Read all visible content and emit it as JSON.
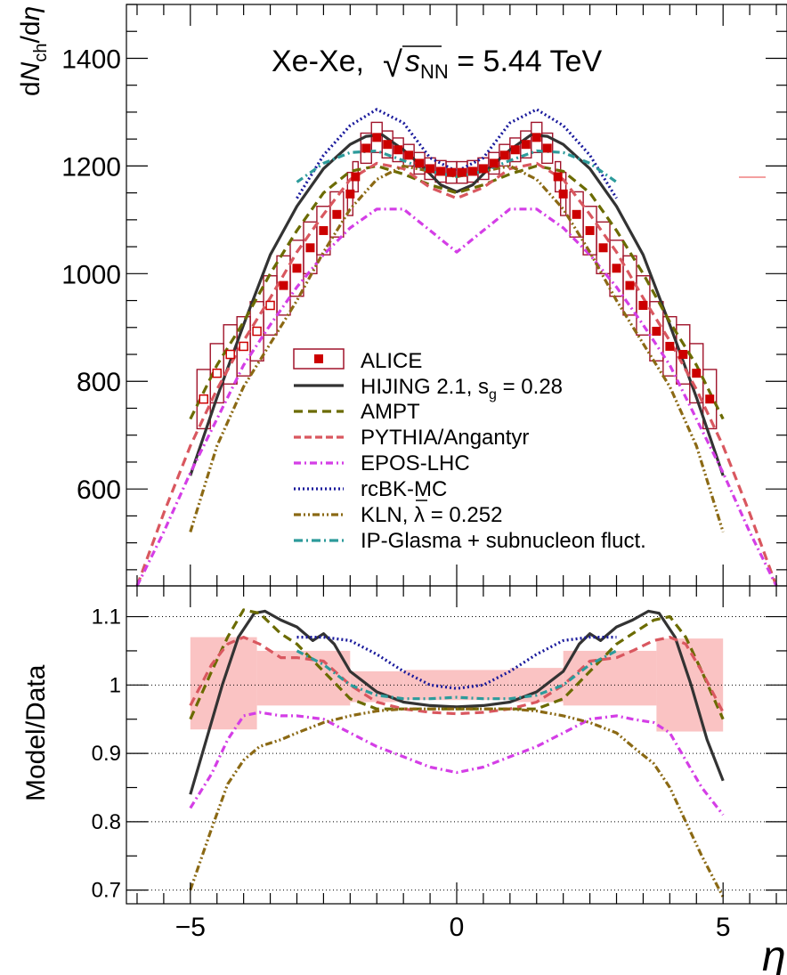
{
  "chart_data": [
    {
      "type": "line",
      "title_main": "Xe-Xe,",
      "title_sqrt": "√",
      "title_s": "s",
      "title_sub": "NN",
      "title_rest": " = 5.44 TeV",
      "ylabel_d": "d",
      "ylabel_N": "N",
      "ylabel_sub": "ch",
      "ylabel_rest": "/d",
      "ylabel_eta": "η",
      "ylim": [
        420,
        1500
      ],
      "yticks": [
        600,
        800,
        1000,
        1200,
        1400
      ],
      "ytick_labels": [
        "600",
        "800",
        "1000",
        "1200",
        "1400"
      ],
      "xlim": [
        -6.2,
        6.2
      ],
      "alice": {
        "name": "ALICE",
        "eta": [
          -4.75,
          -4.5,
          -4.25,
          -4.0,
          -3.75,
          -3.5,
          -3.25,
          -3.0,
          -2.75,
          -2.5,
          -2.25,
          -2.0,
          -1.9,
          -1.7,
          -1.5,
          -1.3,
          -1.1,
          -0.9,
          -0.7,
          -0.5,
          -0.3,
          -0.1,
          0.1,
          0.3,
          0.5,
          0.7,
          0.9,
          1.1,
          1.3,
          1.5,
          1.7,
          1.9,
          2.0,
          2.25,
          2.5,
          2.75,
          3.0,
          3.25,
          3.5,
          3.75,
          4.0,
          4.25,
          4.5,
          4.75
        ],
        "value": [
          767,
          815,
          850,
          865,
          893,
          941,
          978,
          1010,
          1048,
          1080,
          1110,
          1148,
          1180,
          1233,
          1253,
          1240,
          1230,
          1220,
          1205,
          1195,
          1190,
          1188,
          1188,
          1190,
          1195,
          1205,
          1220,
          1230,
          1240,
          1253,
          1233,
          1180,
          1148,
          1110,
          1080,
          1048,
          1010,
          978,
          941,
          893,
          865,
          850,
          815,
          767
        ],
        "open_markers": [
          true,
          true,
          true,
          true,
          true,
          true,
          false,
          false,
          false,
          false,
          false,
          false,
          false,
          false,
          false,
          false,
          false,
          false,
          false,
          false,
          false,
          false,
          false,
          false,
          false,
          false,
          false,
          false,
          false,
          false,
          false,
          false,
          false,
          false,
          false,
          false,
          false,
          false,
          false,
          false,
          false,
          false,
          false,
          false
        ],
        "sys": [
          55,
          55,
          55,
          55,
          55,
          55,
          55,
          52,
          48,
          45,
          42,
          40,
          28,
          28,
          28,
          25,
          22,
          20,
          20,
          20,
          20,
          20,
          20,
          20,
          20,
          20,
          20,
          22,
          25,
          28,
          28,
          28,
          40,
          42,
          45,
          48,
          52,
          55,
          55,
          55,
          55,
          55,
          55,
          55
        ]
      },
      "series": [
        {
          "name": "HIJING 2.1, s",
          "name_sub": "g",
          "name_rest": " = 0.28",
          "color": "#333333",
          "dash": "solid",
          "x": [
            -5.0,
            -4.5,
            -4.0,
            -3.5,
            -3.0,
            -2.5,
            -2.0,
            -1.7,
            -1.4,
            -1.0,
            -0.6,
            -0.3,
            0.0,
            0.3,
            0.6,
            1.0,
            1.4,
            1.7,
            2.0,
            2.5,
            3.0,
            3.5,
            4.0,
            4.5,
            5.0
          ],
          "y": [
            625,
            770,
            905,
            1035,
            1125,
            1195,
            1240,
            1255,
            1258,
            1230,
            1195,
            1165,
            1152,
            1165,
            1195,
            1230,
            1258,
            1255,
            1240,
            1195,
            1125,
            1035,
            905,
            770,
            625
          ]
        },
        {
          "name": "AMPT",
          "color": "#6b6b00",
          "dash": "dash",
          "x": [
            -5.0,
            -4.5,
            -4.0,
            -3.5,
            -3.0,
            -2.5,
            -2.0,
            -1.5,
            -1.0,
            -0.5,
            0.0,
            0.5,
            1.0,
            1.5,
            2.0,
            2.5,
            3.0,
            3.5,
            4.0,
            4.5,
            5.0
          ],
          "y": [
            730,
            830,
            910,
            1000,
            1080,
            1150,
            1190,
            1200,
            1185,
            1165,
            1150,
            1165,
            1185,
            1200,
            1190,
            1150,
            1080,
            1000,
            910,
            830,
            730
          ]
        },
        {
          "name": "PYTHIA/Angantyr",
          "color": "#d9575f",
          "dash": "dash",
          "x": [
            -6.0,
            -5.5,
            -5.0,
            -4.5,
            -4.0,
            -3.5,
            -3.0,
            -2.5,
            -2.0,
            -1.5,
            -1.0,
            -0.5,
            0.0,
            0.5,
            1.0,
            1.5,
            2.0,
            2.5,
            3.0,
            3.5,
            4.0,
            4.5,
            5.0,
            5.5,
            6.0
          ],
          "y": [
            420,
            555,
            680,
            785,
            875,
            955,
            1040,
            1110,
            1175,
            1205,
            1195,
            1160,
            1140,
            1160,
            1195,
            1205,
            1175,
            1110,
            1040,
            955,
            875,
            785,
            680,
            555,
            420
          ]
        },
        {
          "name": "EPOS-LHC",
          "color": "#d43ee6",
          "dash": "dashdot",
          "x": [
            -6.0,
            -5.5,
            -5.0,
            -4.5,
            -4.0,
            -3.5,
            -3.0,
            -2.5,
            -2.0,
            -1.5,
            -1.0,
            -0.5,
            0.0,
            0.5,
            1.0,
            1.5,
            2.0,
            2.5,
            3.0,
            3.5,
            4.0,
            4.5,
            5.0,
            5.5,
            6.0
          ],
          "y": [
            420,
            520,
            630,
            730,
            830,
            905,
            975,
            1035,
            1085,
            1120,
            1120,
            1080,
            1040,
            1080,
            1120,
            1120,
            1085,
            1035,
            975,
            905,
            830,
            730,
            630,
            520,
            420
          ]
        },
        {
          "name": "rcBK-MC",
          "color": "#1a1a9c",
          "dash": "dot",
          "x": [
            -3.0,
            -2.5,
            -2.0,
            -1.5,
            -1.0,
            -0.5,
            0.0,
            0.5,
            1.0,
            1.5,
            2.0,
            2.5,
            3.0
          ],
          "y": [
            1140,
            1220,
            1275,
            1305,
            1280,
            1215,
            1190,
            1215,
            1280,
            1305,
            1275,
            1220,
            1140
          ]
        },
        {
          "name": "KLN, ",
          "name_bar": "λ",
          "name_rest": " = 0.252",
          "color": "#8b6914",
          "dash": "dashdotdot",
          "x": [
            -5.0,
            -4.5,
            -4.0,
            -3.5,
            -3.0,
            -2.5,
            -2.0,
            -1.5,
            -1.0,
            -0.5,
            0.0,
            0.5,
            1.0,
            1.5,
            2.0,
            2.5,
            3.0,
            3.5,
            4.0,
            4.5,
            5.0
          ],
          "y": [
            520,
            680,
            790,
            870,
            950,
            1040,
            1120,
            1175,
            1200,
            1190,
            1180,
            1190,
            1200,
            1175,
            1120,
            1040,
            950,
            870,
            790,
            680,
            520
          ]
        },
        {
          "name": "IP-Glasma + subnucleon fluct.",
          "color": "#2c9b9b",
          "dash": "dashdot",
          "x": [
            -3.0,
            -2.5,
            -2.0,
            -1.5,
            -1.0,
            -0.5,
            0.0,
            0.5,
            1.0,
            1.5,
            2.0,
            2.5,
            3.0
          ],
          "y": [
            1170,
            1205,
            1225,
            1228,
            1210,
            1190,
            1180,
            1190,
            1210,
            1228,
            1225,
            1205,
            1170
          ]
        }
      ]
    },
    {
      "type": "line",
      "ylabel": "Model/Data",
      "xlabel": "η",
      "ylim": [
        0.68,
        1.145
      ],
      "yticks": [
        0.7,
        0.8,
        0.9,
        1.0,
        1.1
      ],
      "ytick_labels": [
        "0.7",
        "0.8",
        "0.9",
        "1",
        "1.1"
      ],
      "xlim": [
        -6.2,
        6.2
      ],
      "xticks": [
        -5,
        0,
        5
      ],
      "xtick_labels": [
        "−5",
        "0",
        "5"
      ],
      "band": [
        {
          "x0": -5.0,
          "x1": -3.75,
          "lo": 0.935,
          "hi": 1.07
        },
        {
          "x0": -3.75,
          "x1": -2.0,
          "lo": 0.97,
          "hi": 1.05
        },
        {
          "x0": -2.0,
          "x1": -1.0,
          "lo": 0.975,
          "hi": 1.02
        },
        {
          "x0": -1.0,
          "x1": 1.0,
          "lo": 0.978,
          "hi": 1.022
        },
        {
          "x0": 1.0,
          "x1": 2.0,
          "lo": 0.975,
          "hi": 1.025
        },
        {
          "x0": 2.0,
          "x1": 3.75,
          "lo": 0.97,
          "hi": 1.05
        },
        {
          "x0": 3.75,
          "x1": 5.0,
          "lo": 0.932,
          "hi": 1.068
        }
      ],
      "series": [
        {
          "name": "HIJING 2.1",
          "color": "#333333",
          "dash": "solid",
          "x": [
            -5.0,
            -4.7,
            -4.4,
            -4.1,
            -3.8,
            -3.6,
            -3.3,
            -3.0,
            -2.7,
            -2.5,
            -2.3,
            -2.0,
            -1.5,
            -1.0,
            -0.5,
            0.0,
            0.5,
            1.0,
            1.5,
            2.0,
            2.3,
            2.5,
            2.7,
            3.0,
            3.3,
            3.6,
            3.8,
            4.1,
            4.4,
            4.7,
            5.0
          ],
          "y": [
            0.84,
            0.92,
            1.0,
            1.07,
            1.105,
            1.108,
            1.095,
            1.085,
            1.065,
            1.075,
            1.06,
            1.02,
            0.99,
            0.975,
            0.97,
            0.968,
            0.97,
            0.975,
            0.99,
            1.02,
            1.06,
            1.075,
            1.065,
            1.085,
            1.095,
            1.108,
            1.105,
            1.07,
            1.0,
            0.92,
            0.86
          ]
        },
        {
          "name": "AMPT",
          "color": "#6b6b00",
          "dash": "dash",
          "x": [
            -5.0,
            -4.6,
            -4.3,
            -4.0,
            -3.7,
            -3.3,
            -3.0,
            -2.5,
            -2.0,
            -1.5,
            -1.0,
            -0.5,
            0.0,
            0.5,
            1.0,
            1.5,
            2.0,
            2.5,
            3.0,
            3.3,
            3.7,
            4.0,
            4.3,
            4.6,
            5.0
          ],
          "y": [
            0.95,
            1.02,
            1.07,
            1.11,
            1.105,
            1.075,
            1.06,
            1.02,
            0.98,
            0.965,
            0.965,
            0.965,
            0.965,
            0.965,
            0.965,
            0.965,
            0.98,
            1.02,
            1.06,
            1.075,
            1.095,
            1.1,
            1.07,
            1.02,
            0.95
          ]
        },
        {
          "name": "PYTHIA/Angantyr",
          "color": "#d9575f",
          "dash": "dash",
          "x": [
            -5.0,
            -4.6,
            -4.3,
            -4.0,
            -3.7,
            -3.3,
            -3.0,
            -2.5,
            -2.0,
            -1.5,
            -1.0,
            -0.5,
            0.0,
            0.5,
            1.0,
            1.5,
            2.0,
            2.5,
            3.0,
            3.3,
            3.7,
            4.0,
            4.3,
            4.6,
            5.0
          ],
          "y": [
            0.97,
            1.03,
            1.06,
            1.07,
            1.06,
            1.04,
            1.04,
            1.035,
            1.0,
            0.975,
            0.965,
            0.96,
            0.958,
            0.96,
            0.965,
            0.975,
            1.0,
            1.035,
            1.04,
            1.05,
            1.065,
            1.07,
            1.06,
            1.02,
            0.96
          ]
        },
        {
          "name": "EPOS-LHC",
          "color": "#d43ee6",
          "dash": "dashdot",
          "x": [
            -5.0,
            -4.6,
            -4.3,
            -4.0,
            -3.7,
            -3.3,
            -3.0,
            -2.5,
            -2.0,
            -1.5,
            -1.0,
            -0.5,
            0.0,
            0.5,
            1.0,
            1.5,
            2.0,
            2.5,
            3.0,
            3.3,
            3.7,
            4.0,
            4.3,
            4.6,
            5.0
          ],
          "y": [
            0.82,
            0.87,
            0.92,
            0.955,
            0.96,
            0.955,
            0.955,
            0.95,
            0.93,
            0.91,
            0.895,
            0.88,
            0.872,
            0.88,
            0.895,
            0.91,
            0.93,
            0.95,
            0.955,
            0.95,
            0.945,
            0.93,
            0.89,
            0.85,
            0.81
          ]
        },
        {
          "name": "rcBK-MC",
          "color": "#1a1a9c",
          "dash": "dot",
          "x": [
            -3.0,
            -2.5,
            -2.0,
            -1.5,
            -1.0,
            -0.5,
            0.0,
            0.5,
            1.0,
            1.5,
            2.0,
            2.5,
            3.0
          ],
          "y": [
            1.07,
            1.07,
            1.065,
            1.045,
            1.02,
            1.0,
            0.995,
            1.0,
            1.02,
            1.045,
            1.065,
            1.07,
            1.07
          ]
        },
        {
          "name": "KLN",
          "color": "#8b6914",
          "dash": "dashdotdot",
          "x": [
            -5.0,
            -4.6,
            -4.3,
            -4.0,
            -3.7,
            -3.3,
            -3.0,
            -2.5,
            -2.0,
            -1.5,
            -1.0,
            -0.5,
            0.0,
            0.5,
            1.0,
            1.5,
            2.0,
            2.5,
            3.0,
            3.3,
            3.7,
            4.0,
            4.3,
            4.6,
            5.0
          ],
          "y": [
            0.7,
            0.79,
            0.855,
            0.89,
            0.91,
            0.92,
            0.93,
            0.945,
            0.955,
            0.962,
            0.965,
            0.965,
            0.965,
            0.965,
            0.965,
            0.962,
            0.955,
            0.945,
            0.93,
            0.91,
            0.885,
            0.85,
            0.8,
            0.75,
            0.69
          ]
        },
        {
          "name": "IP-Glasma",
          "color": "#2c9b9b",
          "dash": "dashdot",
          "x": [
            -3.0,
            -2.5,
            -2.0,
            -1.5,
            -1.0,
            -0.5,
            0.0,
            0.5,
            1.0,
            1.5,
            2.0,
            2.5,
            3.0
          ],
          "y": [
            1.05,
            1.03,
            1.0,
            0.985,
            0.98,
            0.98,
            0.982,
            0.98,
            0.98,
            0.985,
            1.0,
            1.03,
            1.05
          ]
        }
      ]
    }
  ]
}
